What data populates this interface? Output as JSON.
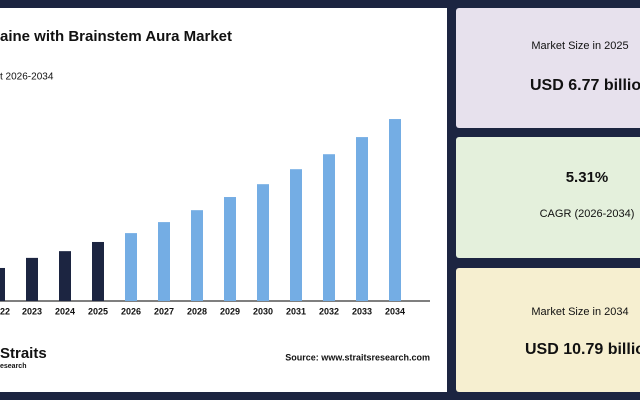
{
  "chart_data": {
    "type": "bar",
    "title": "aine with Brainstem Aura Market",
    "subtitle": "t 2026-2034",
    "categories": [
      "22",
      "2023",
      "2024",
      "2025",
      "2026",
      "2027",
      "2028",
      "2029",
      "2030",
      "2031",
      "2032",
      "2033",
      "2034"
    ],
    "values": [
      5.92,
      6.25,
      6.47,
      6.77,
      7.06,
      7.42,
      7.81,
      8.24,
      8.66,
      9.15,
      9.64,
      10.2,
      10.79
    ],
    "colors": [
      "#1c2541",
      "#1c2541",
      "#1c2541",
      "#1c2541",
      "#74ade4",
      "#74ade4",
      "#74ade4",
      "#74ade4",
      "#74ade4",
      "#74ade4",
      "#74ade4",
      "#74ade4",
      "#74ade4"
    ],
    "ylim": [
      4.84,
      11.38
    ]
  },
  "logo": {
    "name": "Straits",
    "sub": "esearch"
  },
  "source": "Source: www.straitsresearch.com",
  "cards": [
    {
      "label": "Market Size in 2025",
      "value": "USD 6.77 billio",
      "color": "#e7e1ed"
    },
    {
      "value": "5.31%",
      "label": "CAGR (2026-2034)",
      "color": "#e4f0dc"
    },
    {
      "label": "Market Size in 2034",
      "value": "USD 10.79 billio",
      "color": "#f6efd0"
    }
  ]
}
